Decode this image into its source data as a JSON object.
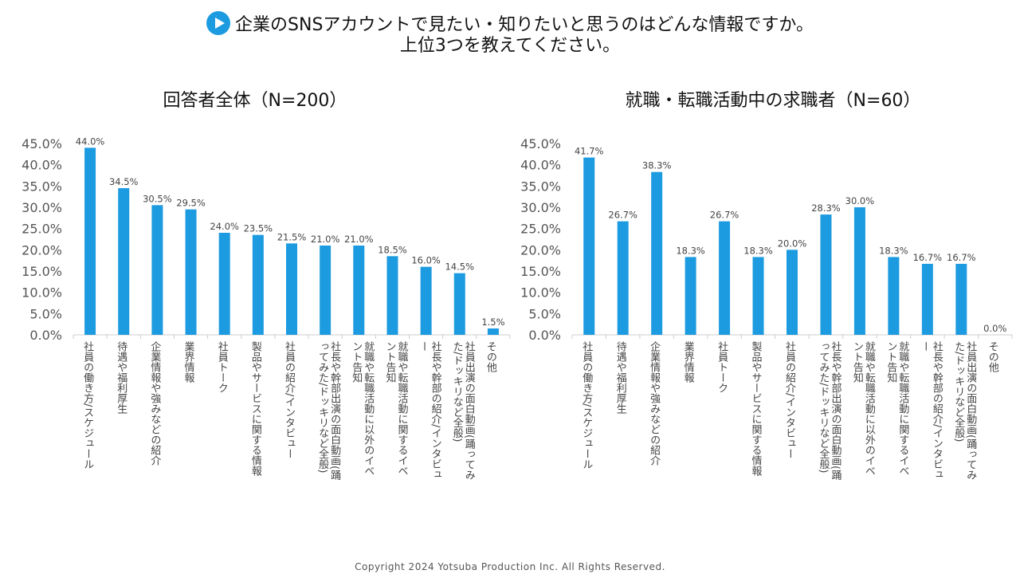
{
  "header": {
    "line1": "企業のSNSアカウントで見たい・知りたいと思うのはどんな情報ですか。",
    "line2": "上位3つを教えてください。"
  },
  "footer": "Copyright 2024  Yotsuba  Production  Inc.   All  Rights  Reserved.",
  "colors": {
    "bar": "#1d9be0"
  },
  "chart_data": [
    {
      "type": "bar",
      "title": "回答者全体（N=200）",
      "ylim": [
        0,
        45
      ],
      "yticks": [
        "0.0%",
        "5.0%",
        "10.0%",
        "15.0%",
        "20.0%",
        "25.0%",
        "30.0%",
        "35.0%",
        "40.0%",
        "45.0%"
      ],
      "categories": [
        "社員の働き方/スケジュール",
        "待遇や福利厚生",
        "企業情報や強みなどの紹介",
        "業界情報",
        "社員トーク",
        "製品やサービスに関する情報",
        "社員の紹介/インタビュー",
        "社長や幹部出演の面白動画(踊ってみた/ドッキリなど全般)",
        "就職や転職活動に以外のイベント告知",
        "就職や転職活動に関するイベント告知",
        "社長や幹部の紹介/インタビュー",
        "社員出演の面白動画(踊ってみた/ドッキリなど全般)",
        "その他"
      ],
      "values": [
        44.0,
        34.5,
        30.5,
        29.5,
        24.0,
        23.5,
        21.5,
        21.0,
        21.0,
        18.5,
        16.0,
        14.5,
        1.5
      ]
    },
    {
      "type": "bar",
      "title": "就職・転職活動中の求職者（N=60）",
      "ylim": [
        0,
        45
      ],
      "yticks": [
        "0.0%",
        "5.0%",
        "10.0%",
        "15.0%",
        "20.0%",
        "25.0%",
        "30.0%",
        "35.0%",
        "40.0%",
        "45.0%"
      ],
      "categories": [
        "社員の働き方/スケジュール",
        "待遇や福利厚生",
        "企業情報や強みなどの紹介",
        "業界情報",
        "社員トーク",
        "製品やサービスに関する情報",
        "社員の紹介/インタビュー",
        "社長や幹部出演の面白動画(踊ってみた/ドッキリなど全般)",
        "就職や転職活動に以外のイベント告知",
        "就職や転職活動に関するイベント告知",
        "社長や幹部の紹介/インタビュー",
        "社員出演の面白動画(踊ってみた/ドッキリなど全般)",
        "その他"
      ],
      "values": [
        41.7,
        26.7,
        38.3,
        18.3,
        26.7,
        18.3,
        20.0,
        28.3,
        30.0,
        18.3,
        16.7,
        16.7,
        0.0
      ]
    }
  ]
}
